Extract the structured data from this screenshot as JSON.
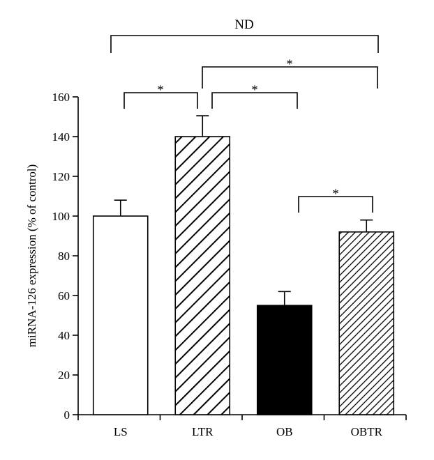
{
  "chart_data": {
    "type": "bar",
    "title": "",
    "xlabel": "",
    "ylabel": "miRNA-126 expression (% of control)",
    "ylim": [
      0,
      160
    ],
    "yticks": [
      0,
      20,
      40,
      60,
      80,
      100,
      120,
      140,
      160
    ],
    "categories": [
      "LS",
      "LTR",
      "OB",
      "OBTR"
    ],
    "values": [
      100,
      140,
      55,
      92
    ],
    "errors": [
      8,
      10.5,
      7,
      6
    ],
    "fills": [
      "white",
      "hatch-wide",
      "solid-black",
      "hatch-dense"
    ],
    "significance": [
      {
        "from": 0,
        "to": 3,
        "label": "ND"
      },
      {
        "from": 1,
        "to": 3,
        "label": "*"
      },
      {
        "from": 0,
        "to": 1,
        "label": "*"
      },
      {
        "from": 1,
        "to": 2,
        "label": "*"
      },
      {
        "from": 2,
        "to": 3,
        "label": "*"
      }
    ],
    "grid": false,
    "legend": "none"
  }
}
